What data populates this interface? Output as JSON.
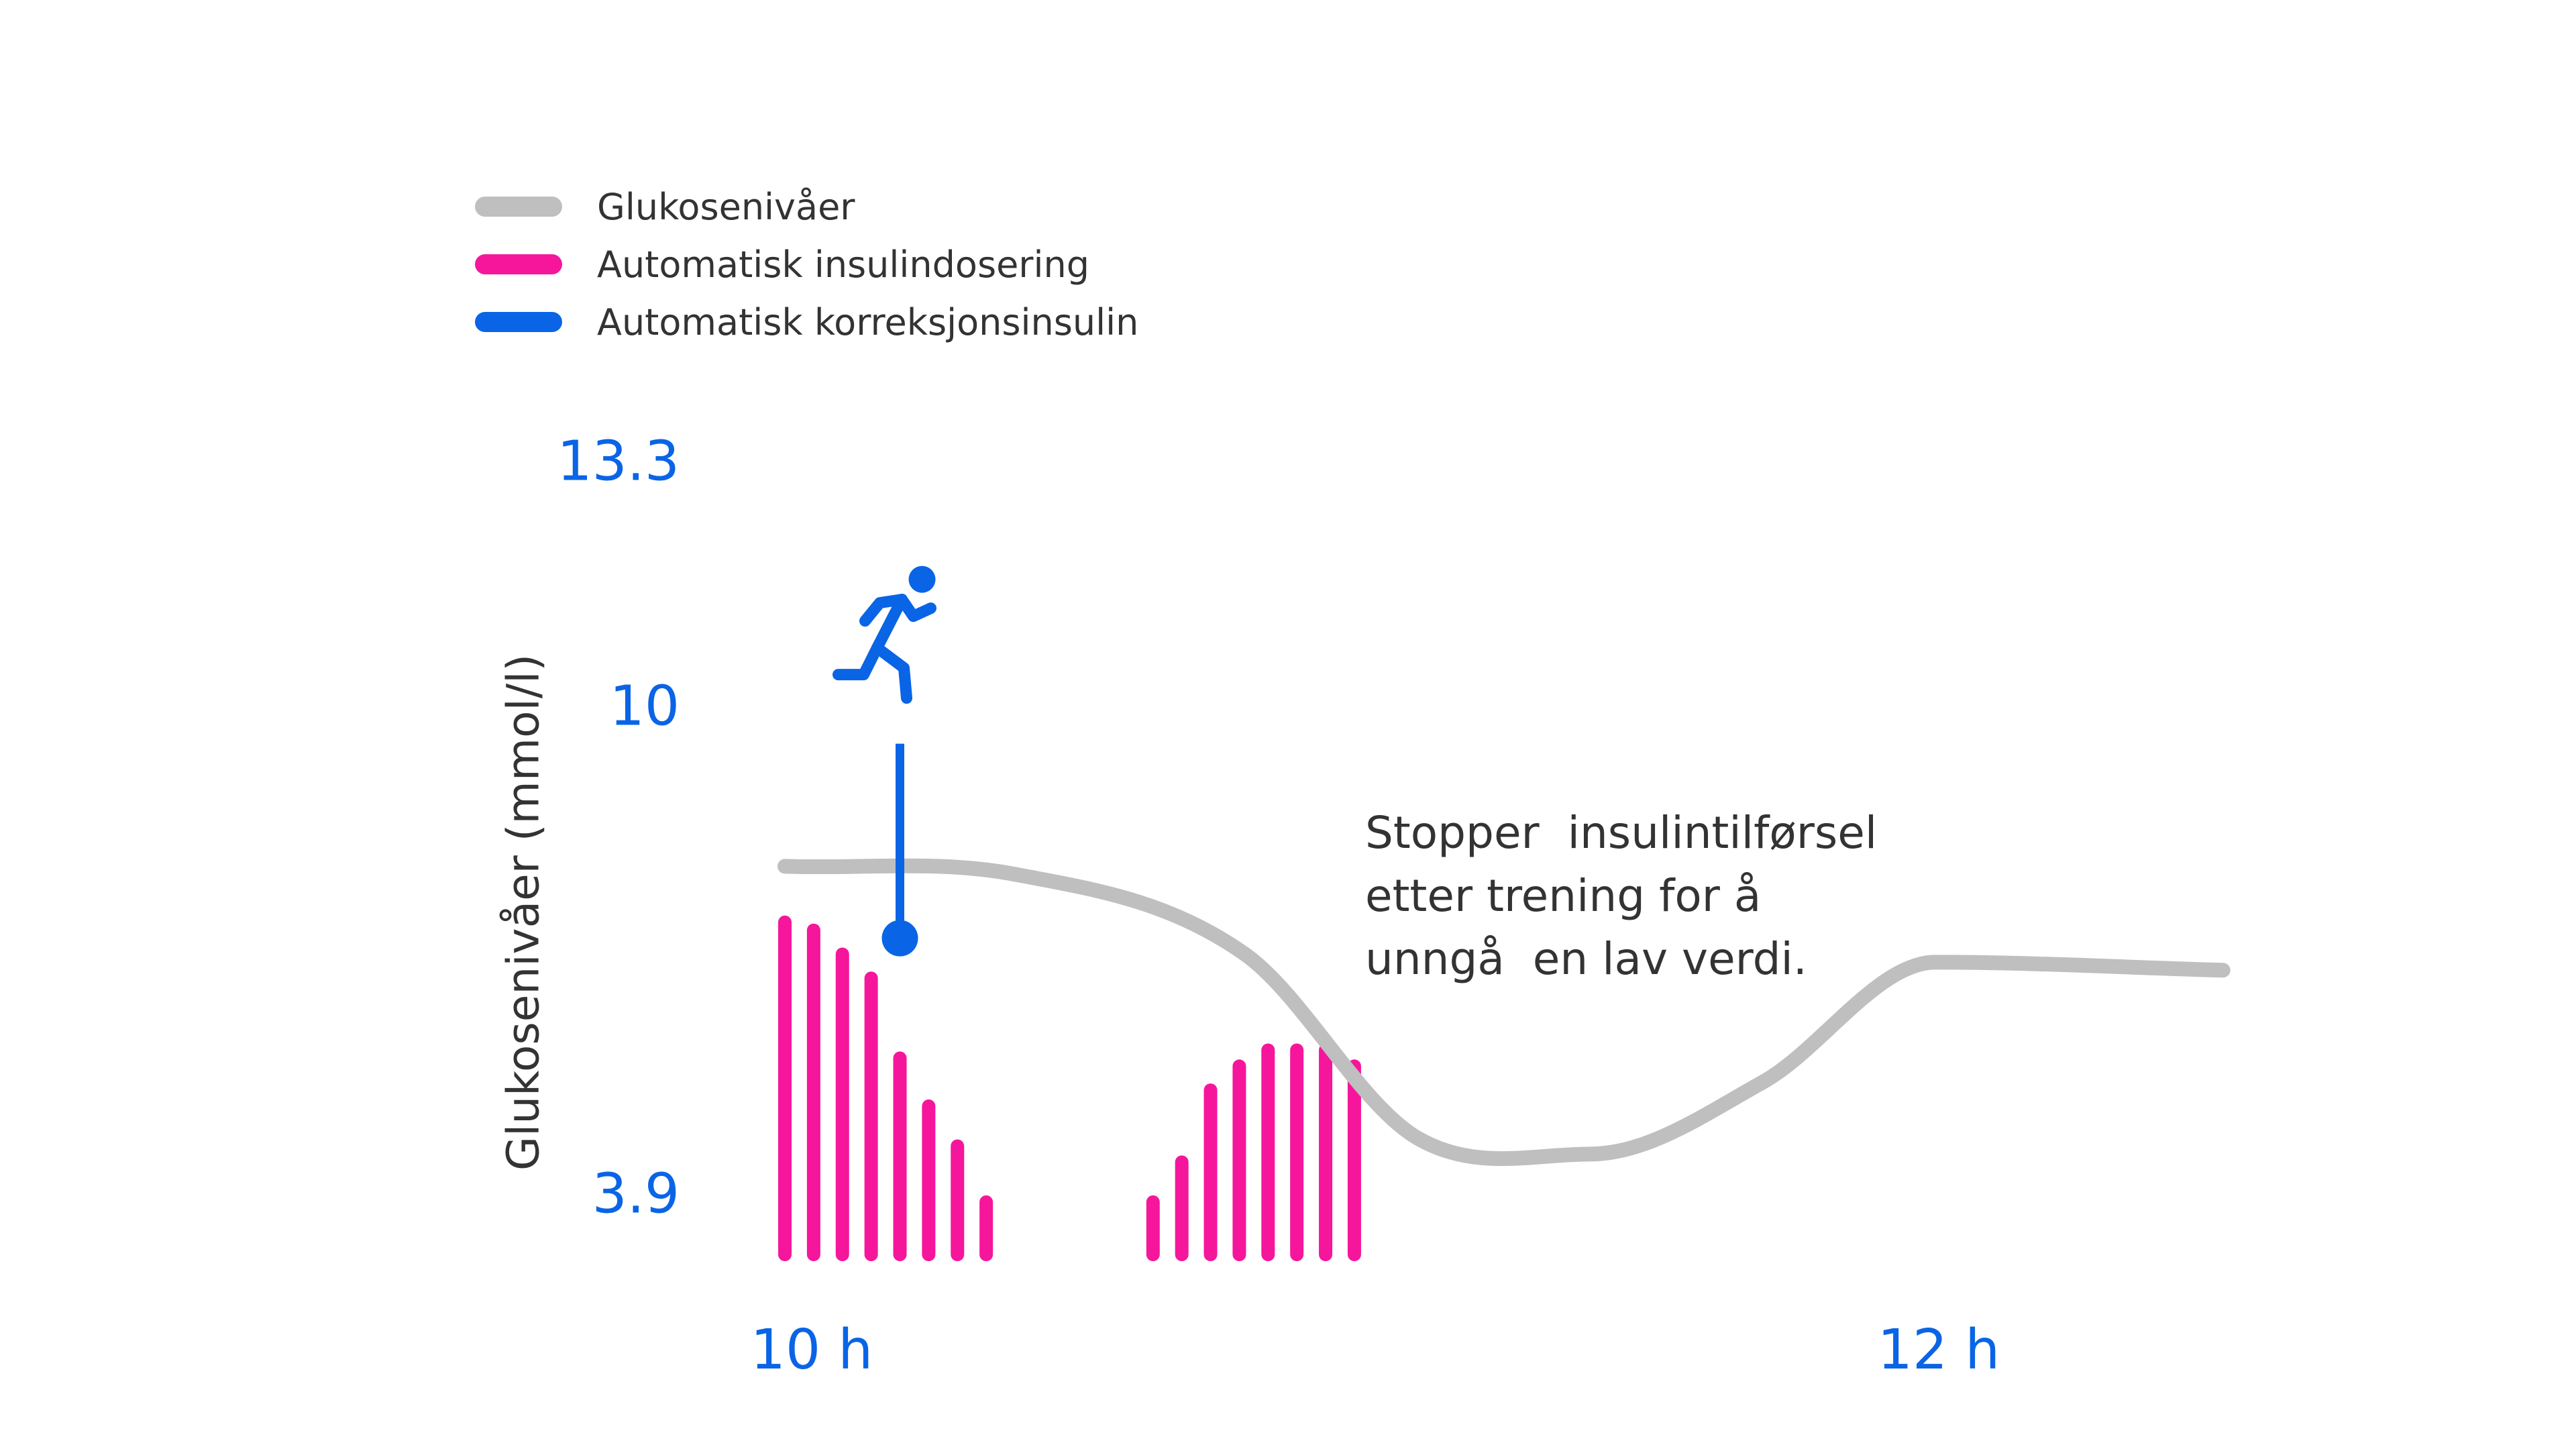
{
  "chart_data": {
    "type": "line",
    "title": "",
    "xlabel": "",
    "ylabel": "Glukosenivåer (mmol/l)",
    "y_ticks": [
      "13.3",
      "10",
      "3.9"
    ],
    "x_ticks": [
      "10 h",
      "12 h"
    ],
    "grid": false,
    "legend_position": "top-left",
    "series": [
      {
        "name": "Glukosenivåer",
        "kind": "line",
        "color": "#bfbfbf",
        "points": [
          {
            "x": 10.0,
            "y": 8.0
          },
          {
            "x": 10.4,
            "y": 7.9
          },
          {
            "x": 10.8,
            "y": 6.9
          },
          {
            "x": 11.1,
            "y": 4.6
          },
          {
            "x": 11.4,
            "y": 4.4
          },
          {
            "x": 11.7,
            "y": 5.3
          },
          {
            "x": 12.0,
            "y": 6.8
          },
          {
            "x": 12.5,
            "y": 6.7
          }
        ]
      },
      {
        "name": "Automatisk insulindosering",
        "kind": "bars",
        "color": "#f5169c",
        "points": [
          {
            "x": 10.0,
            "y": 7.3
          },
          {
            "x": 10.05,
            "y": 7.2
          },
          {
            "x": 10.1,
            "y": 6.9
          },
          {
            "x": 10.15,
            "y": 6.6
          },
          {
            "x": 10.2,
            "y": 5.6
          },
          {
            "x": 10.25,
            "y": 5.0
          },
          {
            "x": 10.3,
            "y": 4.5
          },
          {
            "x": 10.35,
            "y": 3.8
          },
          {
            "x": 10.64,
            "y": 3.8
          },
          {
            "x": 10.69,
            "y": 4.3
          },
          {
            "x": 10.74,
            "y": 5.2
          },
          {
            "x": 10.79,
            "y": 5.5
          },
          {
            "x": 10.84,
            "y": 5.7
          },
          {
            "x": 10.89,
            "y": 5.7
          },
          {
            "x": 10.94,
            "y": 5.7
          },
          {
            "x": 10.99,
            "y": 5.5
          }
        ]
      },
      {
        "name": "Automatisk korreksjonsinsulin",
        "kind": "marker",
        "color": "#0a64e6",
        "points": [
          {
            "x": 10.2,
            "y": 7.1
          }
        ]
      }
    ],
    "annotations": [
      "Stopper  insulintilførsel\netter trening for å\nunngå  en lav verdi."
    ]
  },
  "colors": {
    "axis_text": "#0a64e6",
    "body_text": "#333333"
  },
  "icons": {
    "activity": "running-person-icon"
  }
}
